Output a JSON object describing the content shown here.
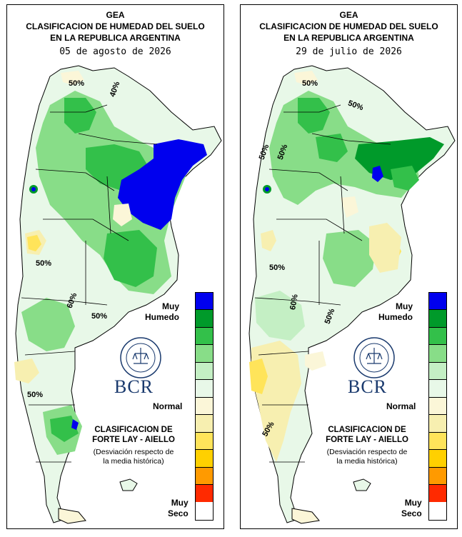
{
  "colors": {
    "muy_humedo": "#0000ee",
    "humedo_3": "#009a2a",
    "humedo_2": "#33c04a",
    "humedo_1": "#88dd88",
    "normal_humedo": "#c4efc4",
    "normal": "#e8f8e8",
    "normal_seco": "#fbf6d8",
    "seco_1": "#f7efb0",
    "seco_2": "#ffe45a",
    "seco_3": "#ffd000",
    "seco_4": "#ff9a00",
    "muy_seco": "#ff2a00",
    "bcr_blue": "#1a3a6e"
  },
  "legend_colors": [
    "#0000ee",
    "#009a2a",
    "#33c04a",
    "#88dd88",
    "#c4efc4",
    "#e8f8e8",
    "#fbf6d8",
    "#f7efb0",
    "#ffe45a",
    "#ffd000",
    "#ff9a00",
    "#ff2a00"
  ],
  "maps": [
    {
      "id": "left",
      "title_line1": "GEA",
      "title_line2": "CLASIFICACION DE HUMEDAD DEL SUELO",
      "title_line3": "EN LA REPUBLICA ARGENTINA",
      "date": "05 de agosto de 2026",
      "contour_labels": [
        "50%",
        "40%",
        "50%",
        "60%",
        "50%",
        "50%"
      ],
      "legend_top": "Muy",
      "legend_top2": "Humedo",
      "legend_normal": "Normal",
      "legend_bottom": "Muy",
      "legend_bottom2": "Seco",
      "method_line1": "CLASIFICACION DE",
      "method_line2": "FORTE LAY - AIELLO",
      "note_line1": "(Desviación respecto de",
      "note_line2": "la media histórica)",
      "brand": "BCR"
    },
    {
      "id": "right",
      "title_line1": "GEA",
      "title_line2": "CLASIFICACION DE HUMEDAD DEL SUELO",
      "title_line3": "EN LA REPUBLICA ARGENTINA",
      "date": "29 de julio de 2026",
      "contour_labels": [
        "50%",
        "50%",
        "50%",
        "50%",
        "50%",
        "60%",
        "50%",
        "50%"
      ],
      "legend_top": "Muy",
      "legend_top2": "Humedo",
      "legend_normal": "Normal",
      "legend_bottom": "Muy",
      "legend_bottom2": "Seco",
      "method_line1": "CLASIFICACION DE",
      "method_line2": "FORTE LAY - AIELLO",
      "note_line1": "(Desviación respecto de",
      "note_line2": "la media histórica)",
      "brand": "BCR"
    }
  ]
}
